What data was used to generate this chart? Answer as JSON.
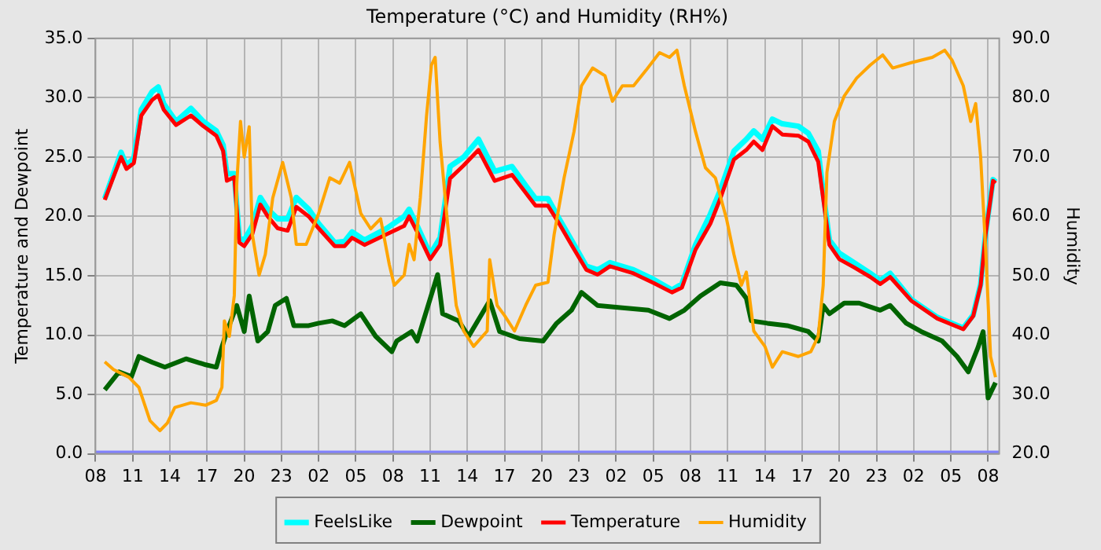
{
  "chart_data": {
    "type": "line",
    "title": "Temperature (°C) and Humidity (RH%)",
    "ylabel": "Temperature and Dewpoint",
    "y2label": "Humidity",
    "xlim": [
      "--01-01T08:00",
      "--01-04T08:54"
    ],
    "xticks": [
      {
        "value": "--01-01T08:00",
        "label": "08"
      },
      {
        "value": "--01-01T11:00",
        "label": "11"
      },
      {
        "value": "--01-01T14:00",
        "label": "14"
      },
      {
        "value": "--01-01T17:00",
        "label": "17"
      },
      {
        "value": "--01-01T20:00",
        "label": "20"
      },
      {
        "value": "--01-01T23:00",
        "label": "23"
      },
      {
        "value": "--01-02T02:00",
        "label": "02"
      },
      {
        "value": "--01-02T05:00",
        "label": "05"
      },
      {
        "value": "--01-02T08:00",
        "label": "08"
      },
      {
        "value": "--01-02T11:00",
        "label": "11"
      },
      {
        "value": "--01-02T14:00",
        "label": "14"
      },
      {
        "value": "--01-02T17:00",
        "label": "17"
      },
      {
        "value": "--01-02T20:00",
        "label": "20"
      },
      {
        "value": "--01-02T23:00",
        "label": "23"
      },
      {
        "value": "--01-03T02:00",
        "label": "02"
      },
      {
        "value": "--01-03T05:00",
        "label": "05"
      },
      {
        "value": "--01-03T08:00",
        "label": "08"
      },
      {
        "value": "--01-03T11:00",
        "label": "11"
      },
      {
        "value": "--01-03T14:00",
        "label": "14"
      },
      {
        "value": "--01-03T17:00",
        "label": "17"
      },
      {
        "value": "--01-03T20:00",
        "label": "20"
      },
      {
        "value": "--01-03T23:00",
        "label": "23"
      },
      {
        "value": "--01-04T02:00",
        "label": "02"
      },
      {
        "value": "--01-04T05:00",
        "label": "05"
      },
      {
        "value": "--01-04T08:00",
        "label": "08"
      }
    ],
    "ylim": [
      0,
      35
    ],
    "yticks": [
      {
        "value": 0,
        "label": "0.0"
      },
      {
        "value": 5,
        "label": "5.0"
      },
      {
        "value": 10,
        "label": "10.0"
      },
      {
        "value": 15,
        "label": "15.0"
      },
      {
        "value": 20,
        "label": "20.0"
      },
      {
        "value": 25,
        "label": "25.0"
      },
      {
        "value": 30,
        "label": "30.0"
      },
      {
        "value": 35,
        "label": "35.0"
      }
    ],
    "y2lim": [
      20,
      90
    ],
    "y2ticks": [
      {
        "value": 20,
        "label": "20.0"
      },
      {
        "value": 30,
        "label": "30.0"
      },
      {
        "value": 40,
        "label": "40.0"
      },
      {
        "value": 50,
        "label": "50.0"
      },
      {
        "value": 60,
        "label": "60.0"
      },
      {
        "value": 70,
        "label": "70.0"
      },
      {
        "value": 80,
        "label": "80.0"
      },
      {
        "value": 90,
        "label": "90.0"
      }
    ],
    "grid": true,
    "legend": "bottom",
    "marker": "none",
    "line_style": "solid",
    "series": [
      {
        "color": "#8080ff",
        "x": [
          "--01-01T08:00",
          "--01-04T08:54"
        ],
        "values": [
          0,
          0
        ]
      },
      {
        "name": "FeelsLike",
        "color": "#00ffff",
        "x": [
          "--01-01T08:45",
          "--01-01T10:04",
          "--01-01T10:30",
          "--01-01T11:06",
          "--01-01T11:42",
          "--01-01T12:34",
          "--01-01T13:04",
          "--01-01T13:30",
          "--01-01T14:30",
          "--01-01T15:42",
          "--01-01T16:42",
          "--01-01T17:45",
          "--01-01T18:18",
          "--01-01T18:36",
          "--01-01T19:12",
          "--01-01T19:36",
          "--01-01T20:00",
          "--01-01T20:39",
          "--01-01T21:18",
          "--01-01T21:54",
          "--01-01T22:42",
          "--01-01T23:30",
          "--01-02T00:12",
          "--01-02T01:12",
          "--01-02T02:00",
          "--01-02T03:18",
          "--01-02T04:06",
          "--01-02T04:42",
          "--01-02T05:42",
          "--01-02T07:30",
          "--01-02T08:54",
          "--01-02T09:18",
          "--01-02T09:57",
          "--01-02T11:00",
          "--01-02T11:48",
          "--01-02T12:36",
          "--01-02T13:42",
          "--01-02T14:54",
          "--01-02T16:12",
          "--01-02T17:36",
          "--01-02T18:42",
          "--01-02T19:30",
          "--01-02T20:30",
          "--01-02T21:24",
          "--01-02T22:24",
          "--01-02T23:36",
          "--01-03T00:30",
          "--01-03T01:30",
          "--01-03T03:24",
          "--01-03T05:00",
          "--01-03T06:30",
          "--01-03T07:18",
          "--01-03T08:24",
          "--01-03T09:36",
          "--01-03T10:24",
          "--01-03T11:30",
          "--01-03T12:30",
          "--01-03T13:06",
          "--01-03T13:48",
          "--01-03T14:36",
          "--01-03T15:24",
          "--01-03T16:42",
          "--01-03T17:30",
          "--01-03T18:18",
          "--01-03T18:42",
          "--01-03T19:12",
          "--01-03T20:00",
          "--01-03T21:12",
          "--01-03T22:30",
          "--01-03T23:18",
          "--01-04T00:06",
          "--01-04T01:48",
          "--01-04T03:54",
          "--01-04T06:00",
          "--01-04T06:48",
          "--01-04T07:24",
          "--01-04T07:48",
          "--01-04T08:24",
          "--01-04T08:36"
        ],
        "values": [
          21.5,
          25.4,
          24.3,
          24.9,
          29.0,
          30.5,
          30.9,
          29.5,
          28.0,
          29.1,
          28.0,
          27.2,
          26.0,
          23.6,
          23.6,
          18.2,
          18.0,
          19.2,
          21.6,
          20.6,
          19.8,
          19.8,
          21.6,
          20.6,
          19.4,
          17.8,
          17.9,
          18.7,
          18.0,
          19.0,
          20.0,
          20.6,
          19.2,
          16.8,
          18.2,
          24.2,
          25.0,
          26.5,
          23.8,
          24.2,
          22.6,
          21.5,
          21.5,
          19.8,
          18.0,
          15.8,
          15.5,
          16.1,
          15.5,
          14.7,
          13.8,
          14.3,
          17.6,
          20.2,
          22.2,
          25.5,
          26.5,
          27.2,
          26.5,
          28.2,
          27.8,
          27.6,
          27.0,
          25.5,
          22.0,
          18.0,
          16.9,
          16.1,
          15.2,
          14.6,
          15.2,
          13.0,
          11.5,
          10.6,
          11.7,
          14.3,
          18.6,
          23.1,
          22.9
        ]
      },
      {
        "name": "Dewpoint",
        "color": "#006400",
        "x": [
          "--01-01T08:45",
          "--01-01T09:54",
          "--01-01T10:54",
          "--01-01T11:30",
          "--01-01T12:36",
          "--01-01T13:36",
          "--01-01T15:18",
          "--01-01T16:54",
          "--01-01T17:45",
          "--01-01T18:12",
          "--01-01T18:36",
          "--01-01T19:24",
          "--01-01T20:00",
          "--01-01T20:24",
          "--01-01T21:06",
          "--01-01T21:54",
          "--01-01T22:30",
          "--01-01T23:24",
          "--01-02T00:00",
          "--01-02T01:12",
          "--01-02T02:00",
          "--01-02T03:06",
          "--01-02T04:06",
          "--01-02T05:24",
          "--01-02T06:36",
          "--01-02T07:54",
          "--01-02T08:18",
          "--01-02T09:30",
          "--01-02T09:57",
          "--01-02T11:36",
          "--01-02T12:00",
          "--01-02T13:18",
          "--01-02T14:06",
          "--01-02T15:48",
          "--01-02T16:36",
          "--01-02T18:12",
          "--01-02T20:06",
          "--01-02T21:12",
          "--01-02T22:24",
          "--01-02T23:12",
          "--01-03T00:30",
          "--01-03T02:30",
          "--01-03T04:36",
          "--01-03T06:18",
          "--01-03T07:30",
          "--01-03T08:48",
          "--01-03T10:24",
          "--01-03T11:42",
          "--01-03T12:30",
          "--01-03T12:54",
          "--01-03T14:12",
          "--01-03T15:48",
          "--01-03T17:30",
          "--01-03T18:18",
          "--01-03T18:42",
          "--01-03T19:12",
          "--01-03T20:24",
          "--01-03T21:36",
          "--01-03T23:18",
          "--01-04T00:06",
          "--01-04T01:24",
          "--01-04T02:36",
          "--01-04T04:18",
          "--01-04T05:30",
          "--01-04T06:24",
          "--01-04T07:12",
          "--01-04T07:36",
          "--01-04T08:00",
          "--01-04T08:36"
        ],
        "values": [
          5.4,
          6.9,
          6.5,
          8.2,
          7.7,
          7.3,
          8.0,
          7.5,
          7.3,
          9.0,
          10.3,
          12.5,
          10.3,
          13.3,
          9.5,
          10.3,
          12.5,
          13.1,
          10.8,
          10.8,
          11.0,
          11.2,
          10.8,
          11.8,
          9.9,
          8.6,
          9.5,
          10.3,
          9.5,
          15.1,
          11.8,
          11.2,
          9.9,
          12.9,
          10.3,
          9.7,
          9.5,
          11.0,
          12.1,
          13.6,
          12.5,
          12.3,
          12.1,
          11.4,
          12.1,
          13.3,
          14.4,
          14.2,
          13.1,
          11.2,
          11.0,
          10.8,
          10.3,
          9.5,
          12.5,
          11.8,
          12.7,
          12.7,
          12.1,
          12.5,
          11.0,
          10.3,
          9.5,
          8.2,
          6.9,
          9.0,
          10.3,
          4.7,
          6.0
        ]
      },
      {
        "name": "Temperature",
        "color": "#ff0000",
        "x": [
          "--01-01T08:45",
          "--01-01T10:04",
          "--01-01T10:30",
          "--01-01T11:06",
          "--01-01T11:42",
          "--01-01T12:34",
          "--01-01T13:04",
          "--01-01T13:30",
          "--01-01T14:30",
          "--01-01T15:42",
          "--01-01T16:42",
          "--01-01T17:45",
          "--01-01T18:18",
          "--01-01T18:36",
          "--01-01T19:12",
          "--01-01T19:36",
          "--01-01T20:00",
          "--01-01T20:39",
          "--01-01T21:18",
          "--01-01T21:54",
          "--01-01T22:42",
          "--01-01T23:30",
          "--01-02T00:12",
          "--01-02T01:12",
          "--01-02T02:00",
          "--01-02T03:18",
          "--01-02T04:06",
          "--01-02T04:42",
          "--01-02T05:42",
          "--01-02T07:30",
          "--01-02T08:54",
          "--01-02T09:18",
          "--01-02T09:57",
          "--01-02T11:00",
          "--01-02T11:48",
          "--01-02T12:36",
          "--01-02T13:42",
          "--01-02T14:54",
          "--01-02T16:12",
          "--01-02T17:36",
          "--01-02T18:42",
          "--01-02T19:30",
          "--01-02T20:30",
          "--01-02T21:24",
          "--01-02T22:24",
          "--01-02T23:36",
          "--01-03T00:30",
          "--01-03T01:30",
          "--01-03T03:24",
          "--01-03T05:00",
          "--01-03T06:30",
          "--01-03T07:18",
          "--01-03T08:24",
          "--01-03T09:36",
          "--01-03T10:24",
          "--01-03T11:30",
          "--01-03T12:30",
          "--01-03T13:06",
          "--01-03T13:48",
          "--01-03T14:36",
          "--01-03T15:24",
          "--01-03T16:42",
          "--01-03T17:30",
          "--01-03T18:18",
          "--01-03T18:42",
          "--01-03T19:12",
          "--01-03T20:00",
          "--01-03T21:12",
          "--01-03T22:30",
          "--01-03T23:18",
          "--01-04T00:06",
          "--01-04T01:48",
          "--01-04T03:54",
          "--01-04T06:00",
          "--01-04T06:48",
          "--01-04T07:24",
          "--01-04T07:48",
          "--01-04T08:24",
          "--01-04T08:36"
        ],
        "values": [
          21.4,
          25.0,
          24.0,
          24.5,
          28.5,
          29.8,
          30.2,
          29.0,
          27.7,
          28.5,
          27.6,
          26.8,
          25.5,
          23.0,
          23.3,
          17.8,
          17.5,
          18.5,
          21.0,
          20.0,
          19.0,
          18.8,
          20.8,
          20.0,
          19.0,
          17.5,
          17.5,
          18.2,
          17.6,
          18.5,
          19.2,
          20.0,
          18.7,
          16.4,
          17.6,
          23.2,
          24.3,
          25.6,
          23.0,
          23.5,
          22.0,
          20.9,
          20.9,
          19.4,
          17.6,
          15.5,
          15.1,
          15.8,
          15.2,
          14.4,
          13.6,
          14.0,
          17.2,
          19.4,
          21.5,
          24.8,
          25.6,
          26.3,
          25.6,
          27.6,
          26.9,
          26.8,
          26.3,
          24.6,
          21.5,
          17.6,
          16.4,
          15.7,
          14.9,
          14.3,
          14.9,
          12.9,
          11.4,
          10.5,
          11.6,
          14.2,
          18.5,
          23.0,
          22.8
        ]
      },
      {
        "name": "Humidity",
        "color": "#ffa500",
        "axis": "y2",
        "x": [
          "--01-01T08:45",
          "--01-01T09:27",
          "--01-01T10:42",
          "--01-01T11:30",
          "--01-01T12:24",
          "--01-01T13:12",
          "--01-01T13:48",
          "--01-01T14:24",
          "--01-01T15:42",
          "--01-01T16:54",
          "--01-01T17:45",
          "--01-01T18:12",
          "--01-01T18:24",
          "--01-01T18:48",
          "--01-01T19:12",
          "--01-01T19:24",
          "--01-01T19:42",
          "--01-01T20:00",
          "--01-01T20:24",
          "--01-01T20:39",
          "--01-01T21:12",
          "--01-01T21:42",
          "--01-01T22:18",
          "--01-01T23:06",
          "--01-01T23:48",
          "--01-02T00:12",
          "--01-02T01:00",
          "--01-02T02:00",
          "--01-02T02:54",
          "--01-02T03:42",
          "--01-02T04:30",
          "--01-02T05:24",
          "--01-02T06:12",
          "--01-02T07:00",
          "--01-02T07:42",
          "--01-02T08:06",
          "--01-02T08:54",
          "--01-02T09:18",
          "--01-02T09:42",
          "--01-02T10:12",
          "--01-02T10:42",
          "--01-02T11:06",
          "--01-02T11:24",
          "--01-02T11:48",
          "--01-02T12:24",
          "--01-02T13:06",
          "--01-02T13:42",
          "--01-02T14:30",
          "--01-02T15:36",
          "--01-02T15:48",
          "--01-02T16:24",
          "--01-02T17:00",
          "--01-02T17:48",
          "--01-02T18:42",
          "--01-02T19:30",
          "--01-02T20:30",
          "--01-02T21:00",
          "--01-02T21:48",
          "--01-02T22:36",
          "--01-02T23:12",
          "--01-03T00:06",
          "--01-03T01:06",
          "--01-03T01:42",
          "--01-03T02:30",
          "--01-03T03:24",
          "--01-03T04:24",
          "--01-03T05:30",
          "--01-03T06:18",
          "--01-03T06:54",
          "--01-03T07:30",
          "--01-03T08:24",
          "--01-03T09:12",
          "--01-03T10:00",
          "--01-03T10:54",
          "--01-03T11:30",
          "--01-03T12:06",
          "--01-03T12:30",
          "--01-03T13:06",
          "--01-03T14:00",
          "--01-03T14:36",
          "--01-03T15:24",
          "--01-03T16:42",
          "--01-03T17:42",
          "--01-03T18:18",
          "--01-03T18:42",
          "--01-03T19:00",
          "--01-03T19:36",
          "--01-03T20:24",
          "--01-03T21:24",
          "--01-03T22:30",
          "--01-03T23:30",
          "--01-04T00:18",
          "--01-04T01:48",
          "--01-04T03:30",
          "--01-04T04:30",
          "--01-04T05:06",
          "--01-04T06:00",
          "--01-04T06:36",
          "--01-04T07:00",
          "--01-04T07:24",
          "--01-04T07:48",
          "--01-04T08:12",
          "--01-04T08:36"
        ],
        "values": [
          35.5,
          34.2,
          32.9,
          31.2,
          25.6,
          23.9,
          25.2,
          27.8,
          28.6,
          28.2,
          29.0,
          31.2,
          42.4,
          39.8,
          46.7,
          65.6,
          76.0,
          70.0,
          75.1,
          57.0,
          50.1,
          53.6,
          63.1,
          69.1,
          63.1,
          55.3,
          55.3,
          60.5,
          66.5,
          65.6,
          69.1,
          60.5,
          57.9,
          59.6,
          51.9,
          48.4,
          50.1,
          55.3,
          52.7,
          63.1,
          76.8,
          85.5,
          86.8,
          72.5,
          58.8,
          45.0,
          40.7,
          38.1,
          40.7,
          52.7,
          45.0,
          43.3,
          40.7,
          45.0,
          48.4,
          48.9,
          57.0,
          66.5,
          74.3,
          82.0,
          85.0,
          83.7,
          79.4,
          82.0,
          82.0,
          84.6,
          87.6,
          86.8,
          88.0,
          82.0,
          74.3,
          68.2,
          66.5,
          59.6,
          53.6,
          48.4,
          50.6,
          40.7,
          38.1,
          34.6,
          37.2,
          36.4,
          37.2,
          39.8,
          48.4,
          67.4,
          76.0,
          80.3,
          83.3,
          85.5,
          87.2,
          85.0,
          85.9,
          86.8,
          88.0,
          86.3,
          82.0,
          76.0,
          79.0,
          70.0,
          54.5,
          36.4,
          32.9
        ]
      }
    ]
  }
}
